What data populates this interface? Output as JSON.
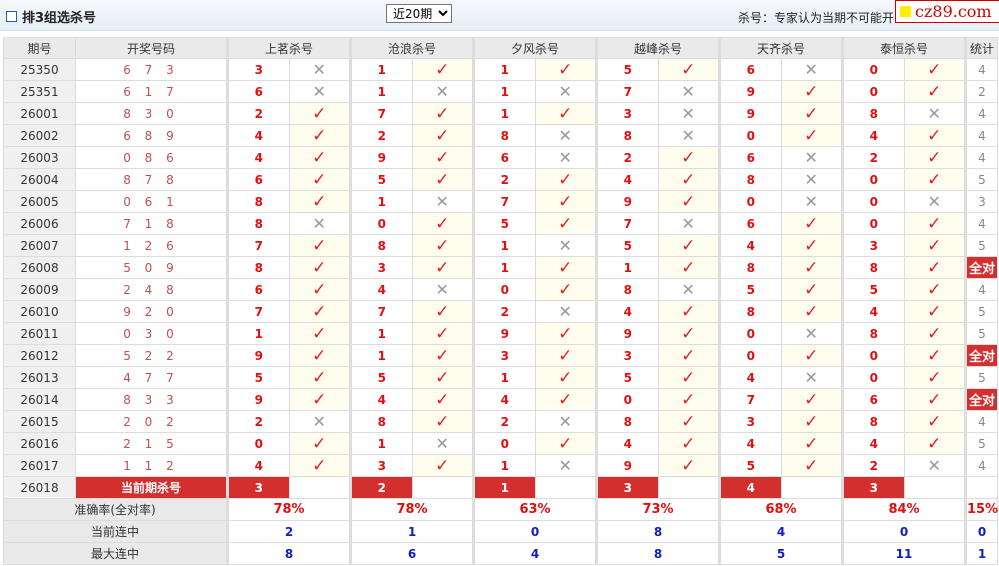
{
  "header": {
    "title": "排3组选杀号",
    "period_select": "近20期",
    "note": "杀号：专家认为当期不可能开出的号码",
    "logo": "cz89.com"
  },
  "columns": {
    "period": "期号",
    "draw": "开奖号码",
    "experts": [
      "上茗杀号",
      "沧浪杀号",
      "夕风杀号",
      "越峰杀号",
      "天齐杀号",
      "泰恒杀号"
    ],
    "stat": "统计"
  },
  "rows": [
    {
      "period": "25350",
      "draw": "6 7 3",
      "kills": [
        [
          3,
          false
        ],
        [
          1,
          true
        ],
        [
          1,
          true
        ],
        [
          5,
          true
        ],
        [
          6,
          false
        ],
        [
          0,
          true
        ]
      ],
      "stat": "4"
    },
    {
      "period": "25351",
      "draw": "6 1 7",
      "kills": [
        [
          6,
          false
        ],
        [
          1,
          false
        ],
        [
          1,
          false
        ],
        [
          7,
          false
        ],
        [
          9,
          true
        ],
        [
          0,
          true
        ]
      ],
      "stat": "2"
    },
    {
      "period": "26001",
      "draw": "8 3 0",
      "kills": [
        [
          2,
          true
        ],
        [
          7,
          true
        ],
        [
          1,
          true
        ],
        [
          3,
          false
        ],
        [
          9,
          true
        ],
        [
          8,
          false
        ]
      ],
      "stat": "4"
    },
    {
      "period": "26002",
      "draw": "6 8 9",
      "kills": [
        [
          4,
          true
        ],
        [
          2,
          true
        ],
        [
          8,
          false
        ],
        [
          8,
          false
        ],
        [
          0,
          true
        ],
        [
          4,
          true
        ]
      ],
      "stat": "4"
    },
    {
      "period": "26003",
      "draw": "0 8 6",
      "kills": [
        [
          4,
          true
        ],
        [
          9,
          true
        ],
        [
          6,
          false
        ],
        [
          2,
          true
        ],
        [
          6,
          false
        ],
        [
          2,
          true
        ]
      ],
      "stat": "4"
    },
    {
      "period": "26004",
      "draw": "8 7 8",
      "kills": [
        [
          6,
          true
        ],
        [
          5,
          true
        ],
        [
          2,
          true
        ],
        [
          4,
          true
        ],
        [
          8,
          false
        ],
        [
          0,
          true
        ]
      ],
      "stat": "5"
    },
    {
      "period": "26005",
      "draw": "0 6 1",
      "kills": [
        [
          8,
          true
        ],
        [
          1,
          false
        ],
        [
          7,
          true
        ],
        [
          9,
          true
        ],
        [
          0,
          false
        ],
        [
          0,
          false
        ]
      ],
      "stat": "3"
    },
    {
      "period": "26006",
      "draw": "7 1 8",
      "kills": [
        [
          8,
          false
        ],
        [
          0,
          true
        ],
        [
          5,
          true
        ],
        [
          7,
          false
        ],
        [
          6,
          true
        ],
        [
          0,
          true
        ]
      ],
      "stat": "4"
    },
    {
      "period": "26007",
      "draw": "1 2 6",
      "kills": [
        [
          7,
          true
        ],
        [
          8,
          true
        ],
        [
          1,
          false
        ],
        [
          5,
          true
        ],
        [
          4,
          true
        ],
        [
          3,
          true
        ]
      ],
      "stat": "5"
    },
    {
      "period": "26008",
      "draw": "5 0 9",
      "kills": [
        [
          8,
          true
        ],
        [
          3,
          true
        ],
        [
          1,
          true
        ],
        [
          1,
          true
        ],
        [
          8,
          true
        ],
        [
          8,
          true
        ]
      ],
      "stat": "全对"
    },
    {
      "period": "26009",
      "draw": "2 4 8",
      "kills": [
        [
          6,
          true
        ],
        [
          4,
          false
        ],
        [
          0,
          true
        ],
        [
          8,
          false
        ],
        [
          5,
          true
        ],
        [
          5,
          true
        ]
      ],
      "stat": "4"
    },
    {
      "period": "26010",
      "draw": "9 2 0",
      "kills": [
        [
          7,
          true
        ],
        [
          7,
          true
        ],
        [
          2,
          false
        ],
        [
          4,
          true
        ],
        [
          8,
          true
        ],
        [
          4,
          true
        ]
      ],
      "stat": "5"
    },
    {
      "period": "26011",
      "draw": "0 3 0",
      "kills": [
        [
          1,
          true
        ],
        [
          1,
          true
        ],
        [
          9,
          true
        ],
        [
          9,
          true
        ],
        [
          0,
          false
        ],
        [
          8,
          true
        ]
      ],
      "stat": "5"
    },
    {
      "period": "26012",
      "draw": "5 2 2",
      "kills": [
        [
          9,
          true
        ],
        [
          1,
          true
        ],
        [
          3,
          true
        ],
        [
          3,
          true
        ],
        [
          0,
          true
        ],
        [
          0,
          true
        ]
      ],
      "stat": "全对"
    },
    {
      "period": "26013",
      "draw": "4 7 7",
      "kills": [
        [
          5,
          true
        ],
        [
          5,
          true
        ],
        [
          1,
          true
        ],
        [
          5,
          true
        ],
        [
          4,
          false
        ],
        [
          0,
          true
        ]
      ],
      "stat": "5"
    },
    {
      "period": "26014",
      "draw": "8 3 3",
      "kills": [
        [
          9,
          true
        ],
        [
          4,
          true
        ],
        [
          4,
          true
        ],
        [
          0,
          true
        ],
        [
          7,
          true
        ],
        [
          6,
          true
        ]
      ],
      "stat": "全对"
    },
    {
      "period": "26015",
      "draw": "2 0 2",
      "kills": [
        [
          2,
          false
        ],
        [
          8,
          true
        ],
        [
          2,
          false
        ],
        [
          8,
          true
        ],
        [
          3,
          true
        ],
        [
          8,
          true
        ]
      ],
      "stat": "4"
    },
    {
      "period": "26016",
      "draw": "2 1 5",
      "kills": [
        [
          0,
          true
        ],
        [
          1,
          false
        ],
        [
          0,
          true
        ],
        [
          4,
          true
        ],
        [
          4,
          true
        ],
        [
          4,
          true
        ]
      ],
      "stat": "5"
    },
    {
      "period": "26017",
      "draw": "1 1 2",
      "kills": [
        [
          4,
          true
        ],
        [
          3,
          true
        ],
        [
          1,
          false
        ],
        [
          9,
          true
        ],
        [
          5,
          true
        ],
        [
          2,
          false
        ]
      ],
      "stat": "4"
    }
  ],
  "current": {
    "period": "26018",
    "label": "当前期杀号",
    "kills": [
      "3",
      "2",
      "1",
      "3",
      "4",
      "3"
    ]
  },
  "summary": [
    {
      "label": "准确率(全对率)",
      "values": [
        "78%",
        "78%",
        "63%",
        "73%",
        "68%",
        "84%"
      ],
      "stat": "15%"
    },
    {
      "label": "当前连中",
      "values": [
        "2",
        "1",
        "0",
        "8",
        "4",
        "0"
      ],
      "stat": "0"
    },
    {
      "label": "最大连中",
      "values": [
        "8",
        "6",
        "4",
        "8",
        "5",
        "11"
      ],
      "stat": "1"
    }
  ],
  "icons": {
    "hit": "check-icon",
    "miss": "cross-icon"
  },
  "colors": {
    "accent": "#d42f2f",
    "hit": "#e0202a",
    "miss": "#999999",
    "streak": "#1020c0"
  }
}
